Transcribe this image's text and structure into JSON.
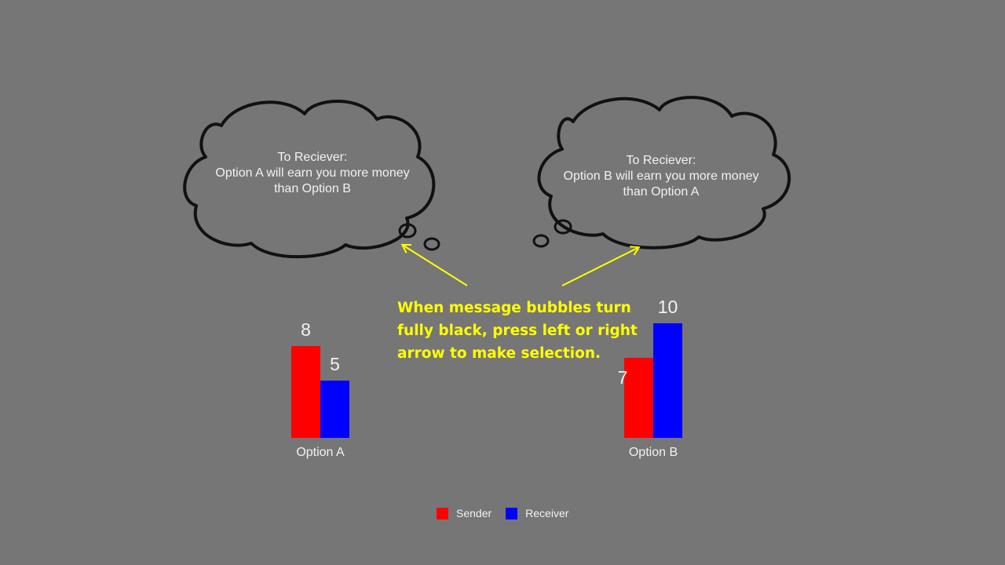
{
  "colors": {
    "background": "#767676",
    "sender": "#ff0000",
    "receiver": "#0000ff",
    "instruction": "#ffff00",
    "bubble_fill": "#767676",
    "bubble_outline": "#111111",
    "arrow": "#ffff00"
  },
  "bubbles": {
    "left": {
      "line1": "To Reciever:",
      "line2": "Option A will earn you more money",
      "line3": "than Option B"
    },
    "right": {
      "line1": "To Reciever:",
      "line2": "Option B will earn you more money",
      "line3": "than Option A"
    }
  },
  "instruction": {
    "line1": "When message bubbles turn",
    "line2": "fully black, press left or right",
    "line3": "arrow to make selection."
  },
  "chart_data": {
    "type": "bar",
    "categories": [
      "Option A",
      "Option B"
    ],
    "series": [
      {
        "name": "Sender",
        "values": [
          8,
          7
        ]
      },
      {
        "name": "Receiver",
        "values": [
          5,
          10
        ]
      }
    ],
    "value_labels": {
      "option_a": {
        "sender": "8",
        "receiver": "5"
      },
      "option_b": {
        "sender": "7",
        "receiver": "10"
      }
    },
    "legend": {
      "position": "bottom-center",
      "sender_label": "Sender",
      "receiver_label": "Receiver"
    }
  }
}
